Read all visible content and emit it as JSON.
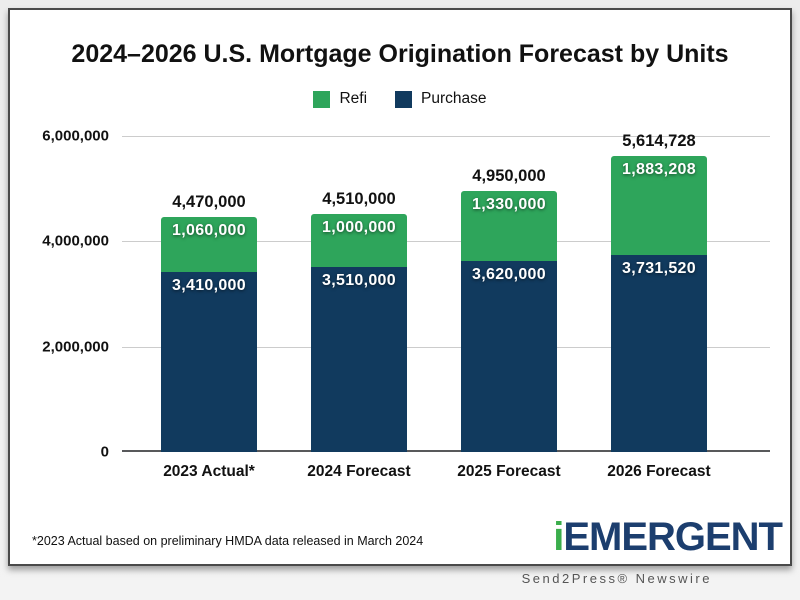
{
  "page": {
    "credit": "Send2Press® Newswire"
  },
  "chart": {
    "footnote": "*2023 Actual based on preliminary HMDA data released in March 2024",
    "logo": {
      "prefix": "i",
      "name": "EMERGENT",
      "prefix_color": "#3BAE4C",
      "name_color": "#1C3E6E"
    },
    "colors": {
      "refi": "#2EA55B",
      "purchase": "#113A5E",
      "grid": "#CCCCCC",
      "axis": "#58595B"
    }
  },
  "chart_data": {
    "type": "bar",
    "stacked": true,
    "title": "2024–2026 U.S. Mortgage Origination Forecast by Units",
    "categories": [
      "2023 Actual*",
      "2024 Forecast",
      "2025 Forecast",
      "2026 Forecast"
    ],
    "series": [
      {
        "name": "Refi",
        "color": "#2EA55B",
        "values": [
          1060000,
          1000000,
          1330000,
          1883208
        ],
        "labels": [
          "1,060,000",
          "1,000,000",
          "1,330,000",
          "1,883,208"
        ]
      },
      {
        "name": "Purchase",
        "color": "#113A5E",
        "values": [
          3410000,
          3510000,
          3620000,
          3731520
        ],
        "labels": [
          "3,410,000",
          "3,510,000",
          "3,620,000",
          "3,731,520"
        ]
      }
    ],
    "totals": [
      4470000,
      4510000,
      4950000,
      5614728
    ],
    "total_labels": [
      "4,470,000",
      "4,510,000",
      "4,950,000",
      "5,614,728"
    ],
    "ylim": [
      0,
      6000000
    ],
    "y_ticks": [
      {
        "value": 6000000,
        "label": "6,000,000"
      },
      {
        "value": 4000000,
        "label": "4,000,000"
      },
      {
        "value": 2000000,
        "label": "2,000,000"
      },
      {
        "value": 0,
        "label": "0"
      }
    ],
    "grid": true,
    "legend_position": "top"
  }
}
